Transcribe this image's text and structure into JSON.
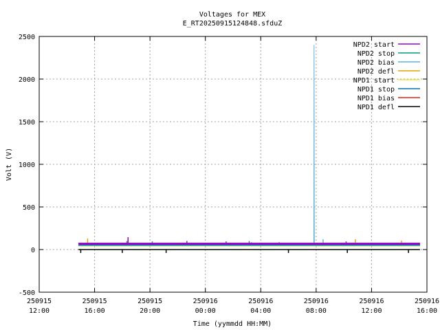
{
  "chart_data": {
    "type": "line",
    "title": "Voltages for MEX",
    "subtitle": "E_RT20250915124848.sfduZ",
    "xlabel": "Time (yymmdd HH:MM)",
    "ylabel": "Volt (V)",
    "xlim": [
      "2025-09-15 12:00",
      "2025-09-16 16:00"
    ],
    "ylim": [
      -500,
      2500
    ],
    "grid": true,
    "legend_position": "top-right",
    "y_ticks": [
      {
        "value": -500,
        "label": "-500"
      },
      {
        "value": 0,
        "label": "0"
      },
      {
        "value": 500,
        "label": "500"
      },
      {
        "value": 1000,
        "label": "1000"
      },
      {
        "value": 1500,
        "label": "1500"
      },
      {
        "value": 2000,
        "label": "2000"
      },
      {
        "value": 2500,
        "label": "2500"
      }
    ],
    "x_ticks": [
      {
        "value": "2025-09-15 12:00",
        "label_date": "250915",
        "label_time": "12:00"
      },
      {
        "value": "2025-09-15 16:00",
        "label_date": "250915",
        "label_time": "16:00"
      },
      {
        "value": "2025-09-15 20:00",
        "label_date": "250915",
        "label_time": "20:00"
      },
      {
        "value": "2025-09-16 00:00",
        "label_date": "250916",
        "label_time": "00:00"
      },
      {
        "value": "2025-09-16 04:00",
        "label_date": "250916",
        "label_time": "04:00"
      },
      {
        "value": "2025-09-16 08:00",
        "label_date": "250916",
        "label_time": "08:00"
      },
      {
        "value": "2025-09-16 12:00",
        "label_date": "250916",
        "label_time": "12:00"
      },
      {
        "value": "2025-09-16 16:00",
        "label_date": "250916",
        "label_time": "16:00"
      }
    ],
    "series": [
      {
        "name": "NPD2 start",
        "color": "#9400d3",
        "style": "band",
        "points": [
          [
            "2025-09-15 14:50",
            68
          ],
          [
            "2025-09-16 15:30",
            68
          ]
        ],
        "band": [
          55,
          80
        ],
        "spikes": [
          [
            "2025-09-15 18:25",
            145
          ],
          [
            "2025-09-15 22:40",
            100
          ],
          [
            "2025-09-16 01:30",
            95
          ],
          [
            "2025-09-16 05:20",
            85
          ],
          [
            "2025-09-16 10:10",
            95
          ]
        ]
      },
      {
        "name": "NPD2 stop",
        "color": "#009e73",
        "style": "band",
        "points": [
          [
            "2025-09-15 14:50",
            55
          ],
          [
            "2025-09-16 15:30",
            55
          ]
        ],
        "band": [
          48,
          62
        ],
        "spikes": [
          [
            "2025-09-15 18:20",
            100
          ],
          [
            "2025-09-15 20:10",
            95
          ],
          [
            "2025-09-16 03:10",
            100
          ],
          [
            "2025-09-16 03:20",
            85
          ]
        ]
      },
      {
        "name": "NPD2 bias",
        "color": "#56b4e9",
        "style": "line",
        "points": [
          [
            "2025-09-15 14:50",
            45
          ],
          [
            "2025-09-16 07:50",
            45
          ],
          [
            "2025-09-16 07:51",
            2400
          ],
          [
            "2025-09-16 07:52",
            45
          ],
          [
            "2025-09-16 15:30",
            45
          ]
        ],
        "spikes": [
          [
            "2025-09-16 08:30",
            120
          ]
        ]
      },
      {
        "name": "NPD2 defl",
        "color": "#e69f00",
        "style": "line",
        "points": [
          [
            "2025-09-15 14:50",
            45
          ],
          [
            "2025-09-16 15:30",
            45
          ]
        ],
        "spikes": [
          [
            "2025-09-15 15:30",
            130
          ],
          [
            "2025-09-16 10:50",
            120
          ],
          [
            "2025-09-16 14:10",
            105
          ]
        ]
      },
      {
        "name": "NPD1 start",
        "color": "#f0e442",
        "style": "line",
        "points": [
          [
            "2025-09-15 14:50",
            40
          ],
          [
            "2025-09-16 15:30",
            40
          ]
        ],
        "spikes": []
      },
      {
        "name": "NPD1 stop",
        "color": "#0072b2",
        "style": "line",
        "points": [
          [
            "2025-09-15 14:50",
            50
          ],
          [
            "2025-09-16 15:30",
            50
          ]
        ],
        "spikes": []
      },
      {
        "name": "NPD1 bias",
        "color": "#e51e10",
        "style": "line",
        "points": [
          [
            "2025-09-15 14:50",
            55
          ],
          [
            "2025-09-16 15:30",
            55
          ]
        ],
        "spikes": []
      },
      {
        "name": "NPD1 defl",
        "color": "#000000",
        "style": "line",
        "points": [
          [
            "2025-09-15 14:50",
            0
          ],
          [
            "2025-09-16 15:30",
            0
          ]
        ],
        "spikes": [
          [
            "2025-09-15 15:00",
            -40
          ],
          [
            "2025-09-15 18:00",
            -40
          ],
          [
            "2025-09-15 21:10",
            -40
          ],
          [
            "2025-09-16 06:00",
            -40
          ],
          [
            "2025-09-16 10:15",
            -40
          ],
          [
            "2025-09-16 14:40",
            -40
          ]
        ]
      }
    ]
  }
}
